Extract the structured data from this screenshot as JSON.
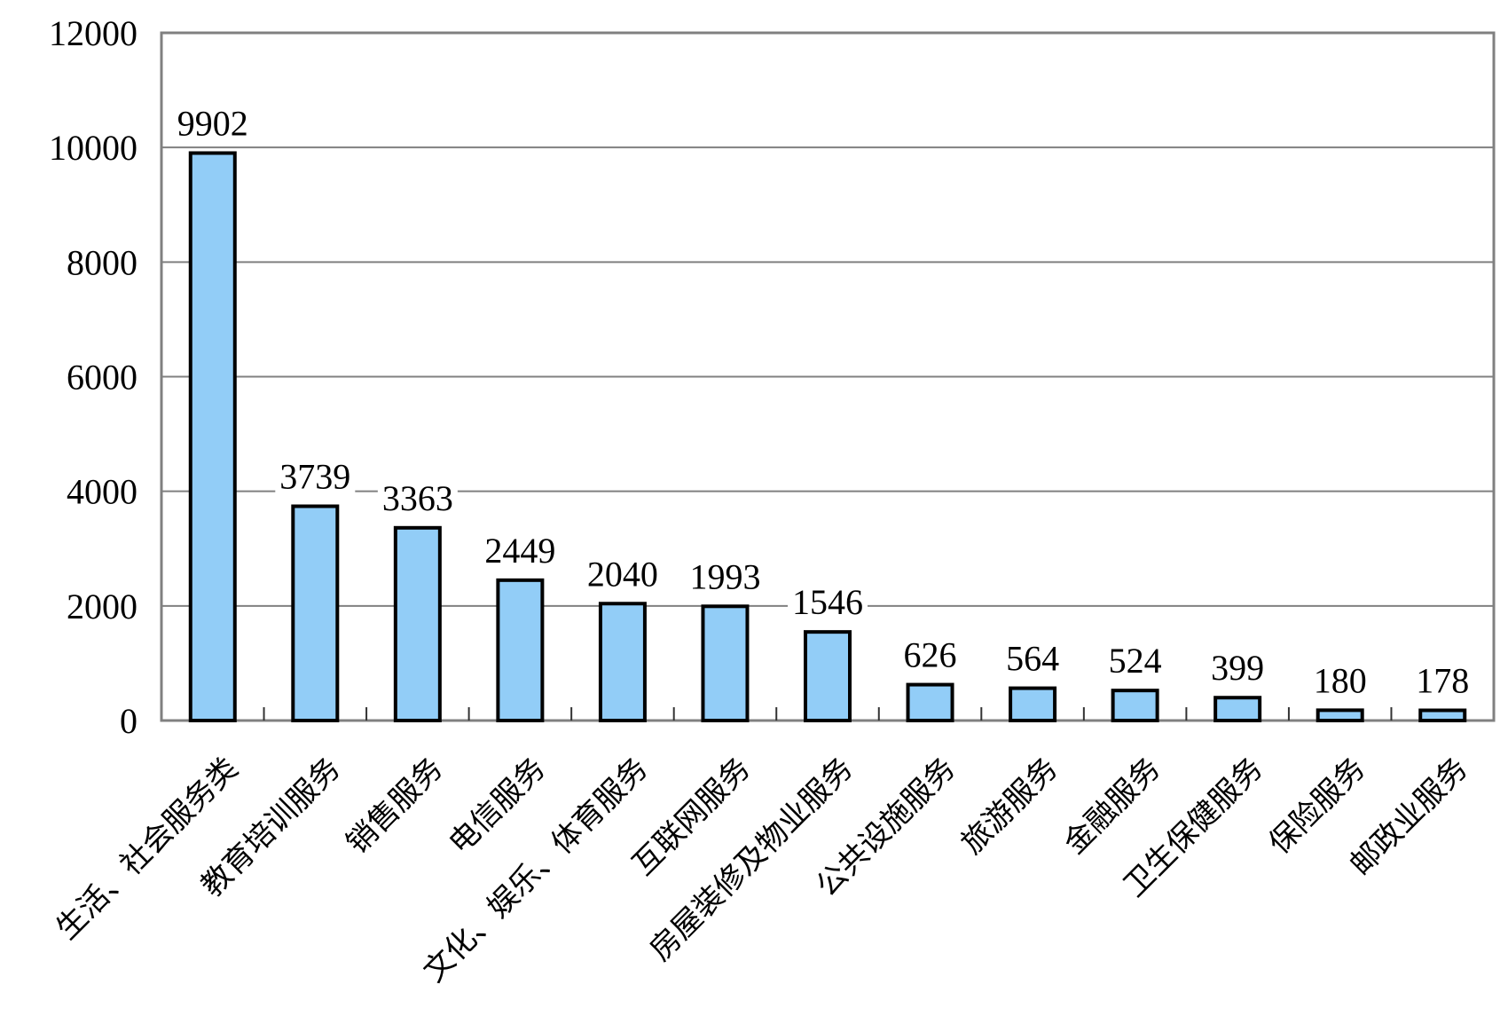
{
  "chart_data": {
    "type": "bar",
    "categories": [
      "生活、社会服务类",
      "教育培训服务",
      "销售服务",
      "电信服务",
      "文化、娱乐、体育服务",
      "互联网服务",
      "房屋装修及物业服务",
      "公共设施服务",
      "旅游服务",
      "金融服务",
      "卫生保健服务",
      "保险服务",
      "邮政业服务"
    ],
    "values": [
      9902,
      3739,
      3363,
      2449,
      2040,
      1993,
      1546,
      626,
      564,
      524,
      399,
      180,
      178
    ],
    "data_labels": [
      9902,
      3739,
      3363,
      2449,
      2040,
      1993,
      1546,
      626,
      564,
      524,
      399,
      180,
      178
    ],
    "title": "",
    "xlabel": "",
    "ylabel": "",
    "ylim": [
      0,
      12000
    ],
    "yticks": [
      0,
      2000,
      4000,
      6000,
      8000,
      10000,
      12000
    ],
    "grid": true,
    "legend": false,
    "x_label_rotation_deg": -45,
    "colors": {
      "bar_fill": "#92CDF7",
      "bar_border": "#000000",
      "gridline": "#808080",
      "plot_border": "#808080",
      "tick": "#333333",
      "text": "#000000",
      "background": "#FFFFFF"
    }
  }
}
